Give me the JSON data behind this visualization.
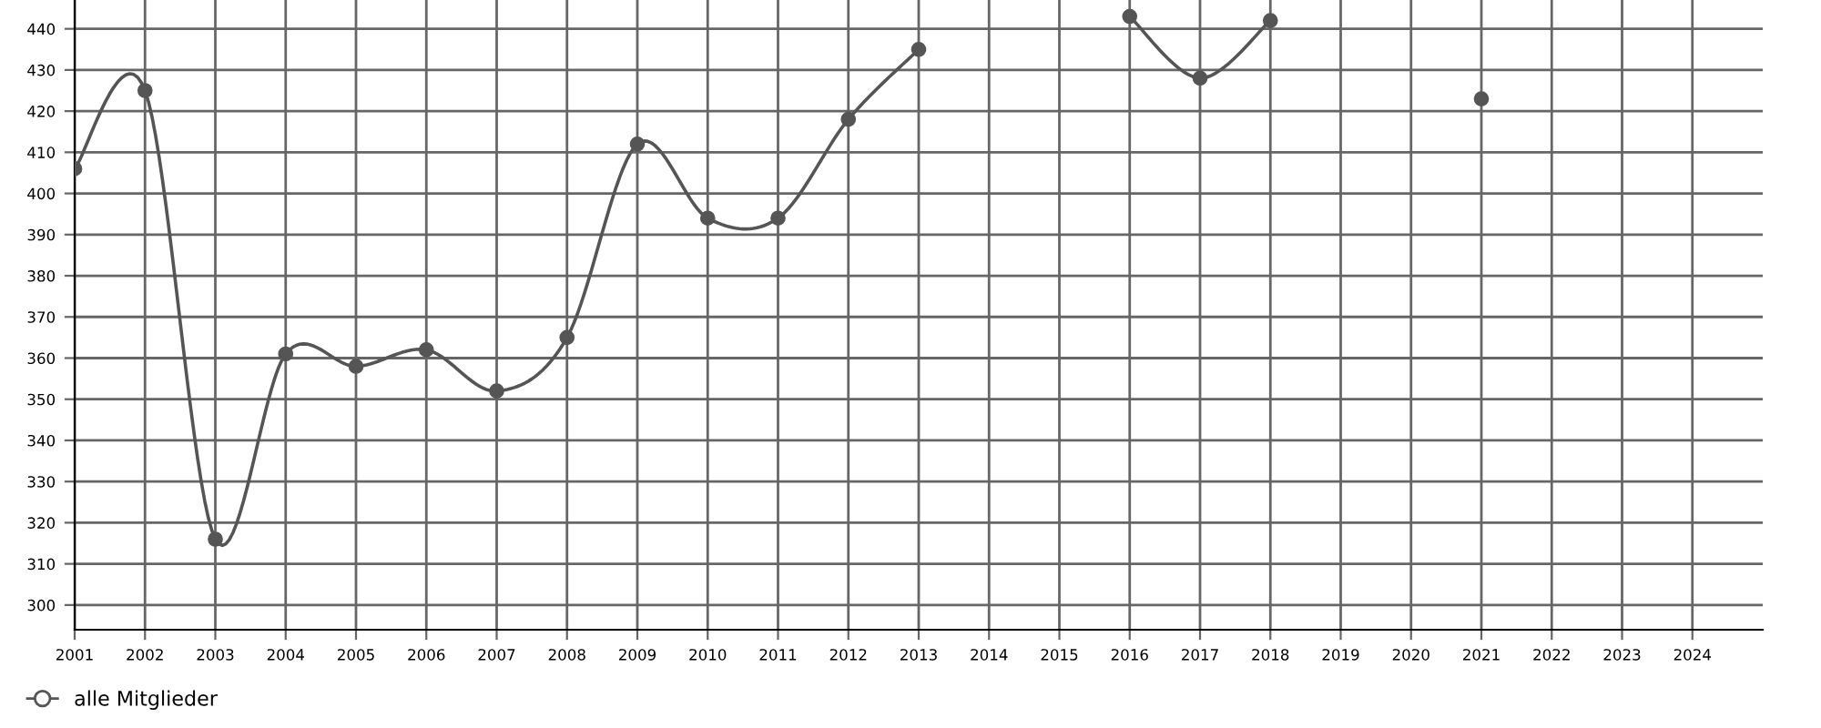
{
  "chart_data": {
    "type": "line",
    "categories": [
      "2001",
      "2002",
      "2003",
      "2004",
      "2005",
      "2006",
      "2007",
      "2008",
      "2009",
      "2010",
      "2011",
      "2012",
      "2013",
      "2014",
      "2015",
      "2016",
      "2017",
      "2018",
      "2019",
      "2020",
      "2021",
      "2022",
      "2023",
      "2024"
    ],
    "series": [
      {
        "name": "alle Mitglieder",
        "color": "#555555",
        "values": [
          406,
          425,
          316,
          361,
          358,
          362,
          352,
          365,
          412,
          394,
          394,
          418,
          435,
          null,
          null,
          443,
          428,
          442,
          null,
          null,
          423,
          null,
          null,
          null
        ]
      }
    ],
    "ylim": [
      294,
      447
    ],
    "yticks": [
      300,
      310,
      320,
      330,
      340,
      350,
      360,
      370,
      380,
      390,
      400,
      410,
      420,
      430,
      440
    ],
    "grid": true,
    "legend": "bottom left",
    "marker": "circle",
    "line_style": "solid"
  }
}
